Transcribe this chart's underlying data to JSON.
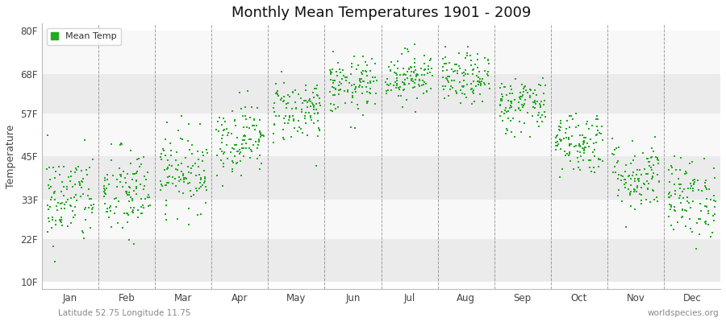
{
  "title": "Monthly Mean Temperatures 1901 - 2009",
  "ylabel": "Temperature",
  "xlabel_labels": [
    "Jan",
    "Feb",
    "Mar",
    "Apr",
    "May",
    "Jun",
    "Jul",
    "Aug",
    "Sep",
    "Oct",
    "Nov",
    "Dec"
  ],
  "ytick_labels": [
    "10F",
    "22F",
    "33F",
    "45F",
    "57F",
    "68F",
    "80F"
  ],
  "ytick_values": [
    10,
    22,
    33,
    45,
    57,
    68,
    80
  ],
  "ylim": [
    8,
    82
  ],
  "dot_color": "#22aa22",
  "bg_color": "#ffffff",
  "plot_bg_color": "#ffffff",
  "stripe_colors": [
    "#ebebeb",
    "#f8f8f8"
  ],
  "grid_color": "#666666",
  "legend_label": "Mean Temp",
  "footer_left": "Latitude 52.75 Longitude 11.75",
  "footer_right": "worldspecies.org",
  "monthly_means_F": [
    33.0,
    34.5,
    41.0,
    50.0,
    58.0,
    64.5,
    67.5,
    66.5,
    59.5,
    49.0,
    39.5,
    33.5
  ],
  "monthly_std_F": [
    6.5,
    6.5,
    5.5,
    5.0,
    4.5,
    4.0,
    3.5,
    3.5,
    4.0,
    4.5,
    5.0,
    5.5
  ],
  "n_years": 109,
  "random_seed": 42
}
